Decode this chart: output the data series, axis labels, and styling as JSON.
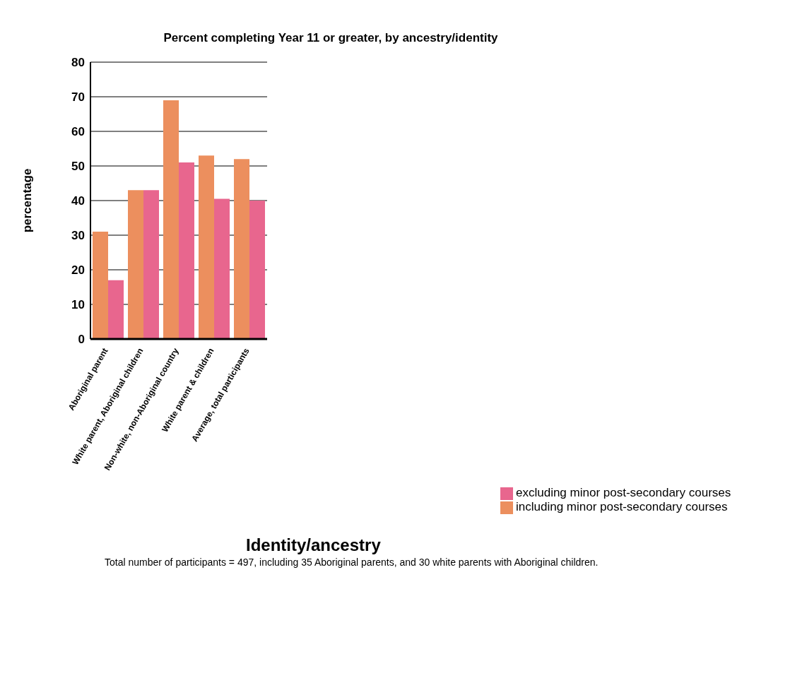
{
  "chart_data": {
    "type": "bar",
    "title": "Percent completing Year 11 or greater, by ancestry/identity",
    "xlabel": "Identity/ancestry",
    "ylabel": "percentage",
    "annotations": [
      "Total number of participants = 497, including 35 Aboriginal parents, and 30 white parents with Aboriginal children."
    ],
    "categories": [
      "Aboriginal parent",
      "White parent, Aboriginal children",
      "Non-white, non-Aboriginal country",
      "White parent & children",
      "Average, total participants"
    ],
    "series": [
      {
        "name": "including minor post-secondary courses",
        "color": "#ec8f5e",
        "values": [
          31,
          43,
          69,
          53,
          52
        ]
      },
      {
        "name": "excluding minor post-secondary courses",
        "color": "#e8668e",
        "values": [
          17,
          43,
          51,
          40.5,
          40
        ]
      }
    ],
    "ylim": [
      0,
      80
    ],
    "yticks": [
      0,
      10,
      20,
      30,
      40,
      50,
      60,
      70,
      80
    ],
    "grid": "y",
    "legend": "bottom right"
  }
}
